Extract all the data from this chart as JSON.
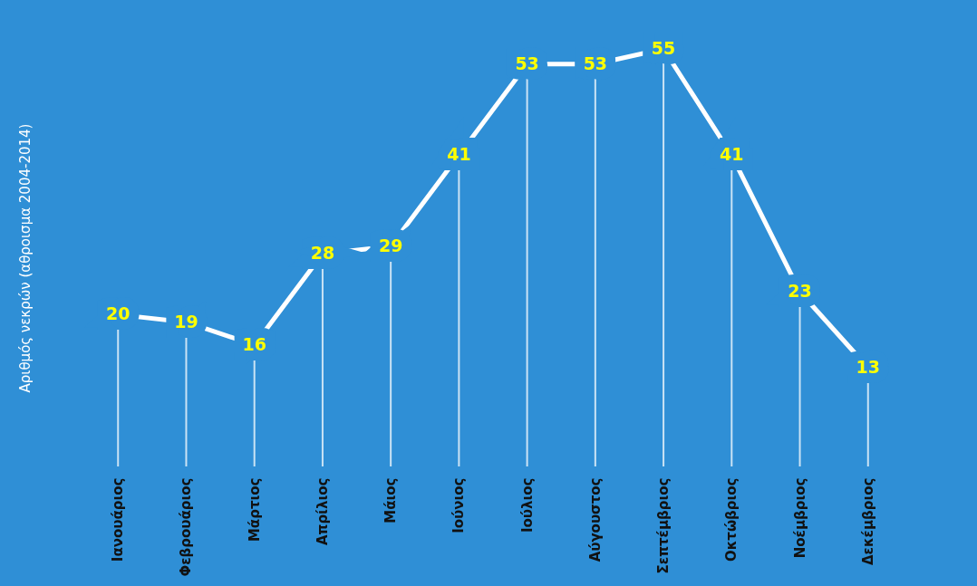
{
  "chart_data": {
    "type": "line",
    "ylabel": "Αριθμός νεκρών (αθροισμα 2004-2014)",
    "categories": [
      "Ιανουάριος",
      "Φεβρουάριος",
      "Μάρτιος",
      "Απρίλιος",
      "Μάιος",
      "Ιούνιος",
      "Ιούλιος",
      "Αύγουστος",
      "Σεπτέμβριος",
      "Οκτώβριος",
      "Νοέμβριος",
      "Δεκέμβριος"
    ],
    "series": [
      {
        "color": "#ffffff",
        "values": [
          20,
          19,
          16,
          28,
          29,
          41,
          53,
          53,
          55,
          41,
          23,
          13
        ]
      }
    ],
    "data_labels": true,
    "grid": "x",
    "line_style": "solid",
    "tick_labels": "x"
  }
}
